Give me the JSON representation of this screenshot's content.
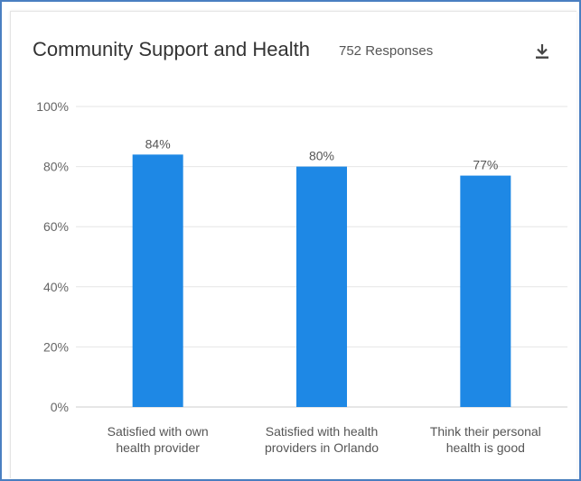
{
  "header": {
    "title": "Community Support and Health",
    "responses": "752 Responses",
    "download_icon": "download-icon"
  },
  "colors": {
    "bar": "#1e88e5",
    "frame": "#4a7fc1",
    "grid": "#e6e6e6"
  },
  "chart_data": {
    "type": "bar",
    "categories": [
      [
        "Satisfied with own",
        "health provider"
      ],
      [
        "Satisfied with health",
        "providers in Orlando"
      ],
      [
        "Think their personal",
        "health is good"
      ]
    ],
    "values": [
      84,
      80,
      77
    ],
    "value_labels": [
      "84%",
      "80%",
      "77%"
    ],
    "ylim": [
      0,
      100
    ],
    "yticks": [
      0,
      20,
      40,
      60,
      80,
      100
    ],
    "ytick_labels": [
      "0%",
      "20%",
      "40%",
      "60%",
      "80%",
      "100%"
    ],
    "grid": true,
    "legend": "none"
  }
}
